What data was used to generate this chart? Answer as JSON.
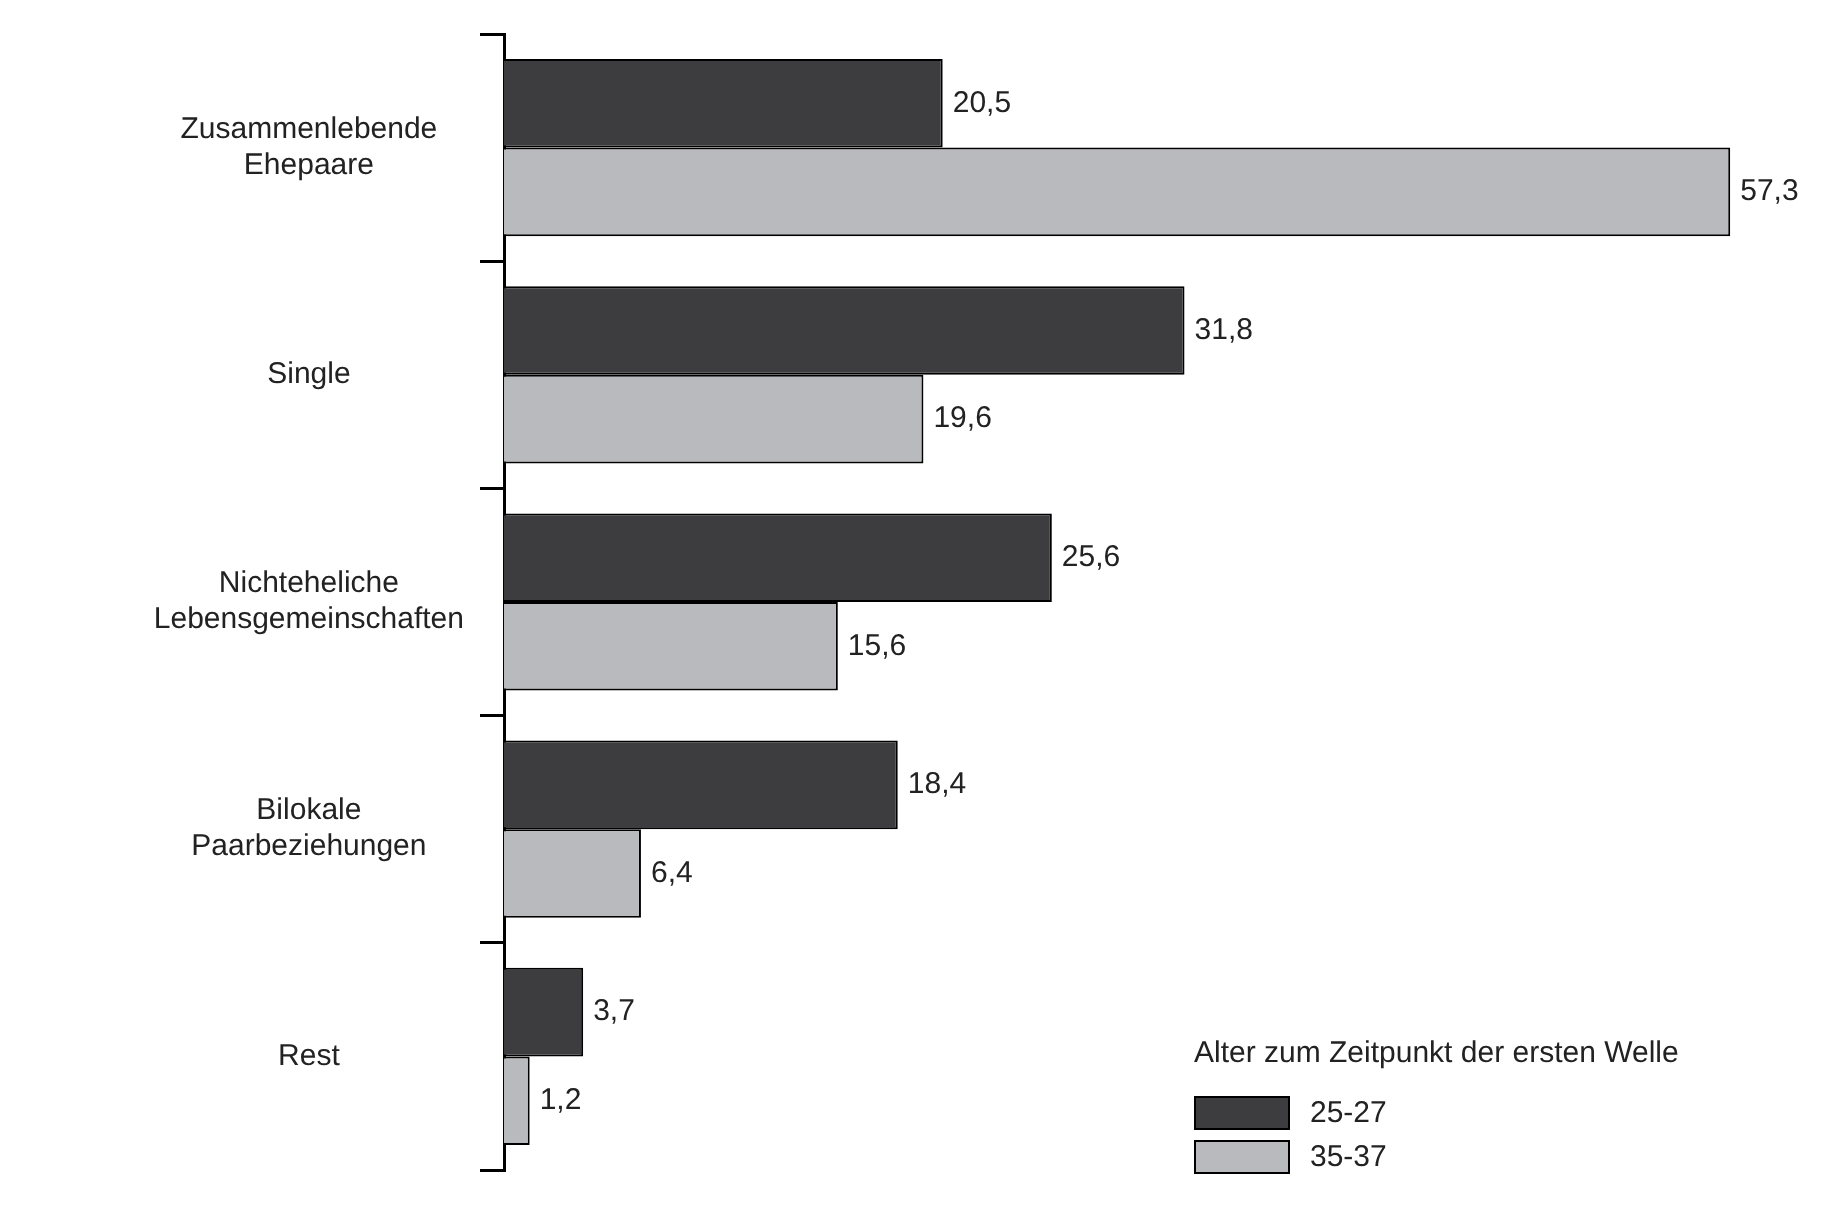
{
  "chart_data": {
    "type": "bar",
    "orientation": "horizontal",
    "categories": [
      "Zusammenlebende Ehepaare",
      "Single",
      "Nichteheliche Lebensgemeinschaften",
      "Bilokale Paarbeziehungen",
      "Rest"
    ],
    "series": [
      {
        "name": "25-27",
        "color": "#3d3d40",
        "values": [
          20.5,
          31.8,
          25.6,
          18.4,
          3.7
        ],
        "value_labels": [
          "20,5",
          "31,8",
          "25,6",
          "18,4",
          "3,7"
        ]
      },
      {
        "name": "35-37",
        "color": "#b9babd",
        "values": [
          57.3,
          19.6,
          15.6,
          6.4,
          1.2
        ],
        "value_labels": [
          "57,3",
          "19,6",
          "15,6",
          "6,4",
          "1,2"
        ]
      }
    ],
    "tick_labels": "y",
    "legend": "bottom right",
    "legend_title": "Alter zum Zeitpunkt der ersten Welle"
  }
}
